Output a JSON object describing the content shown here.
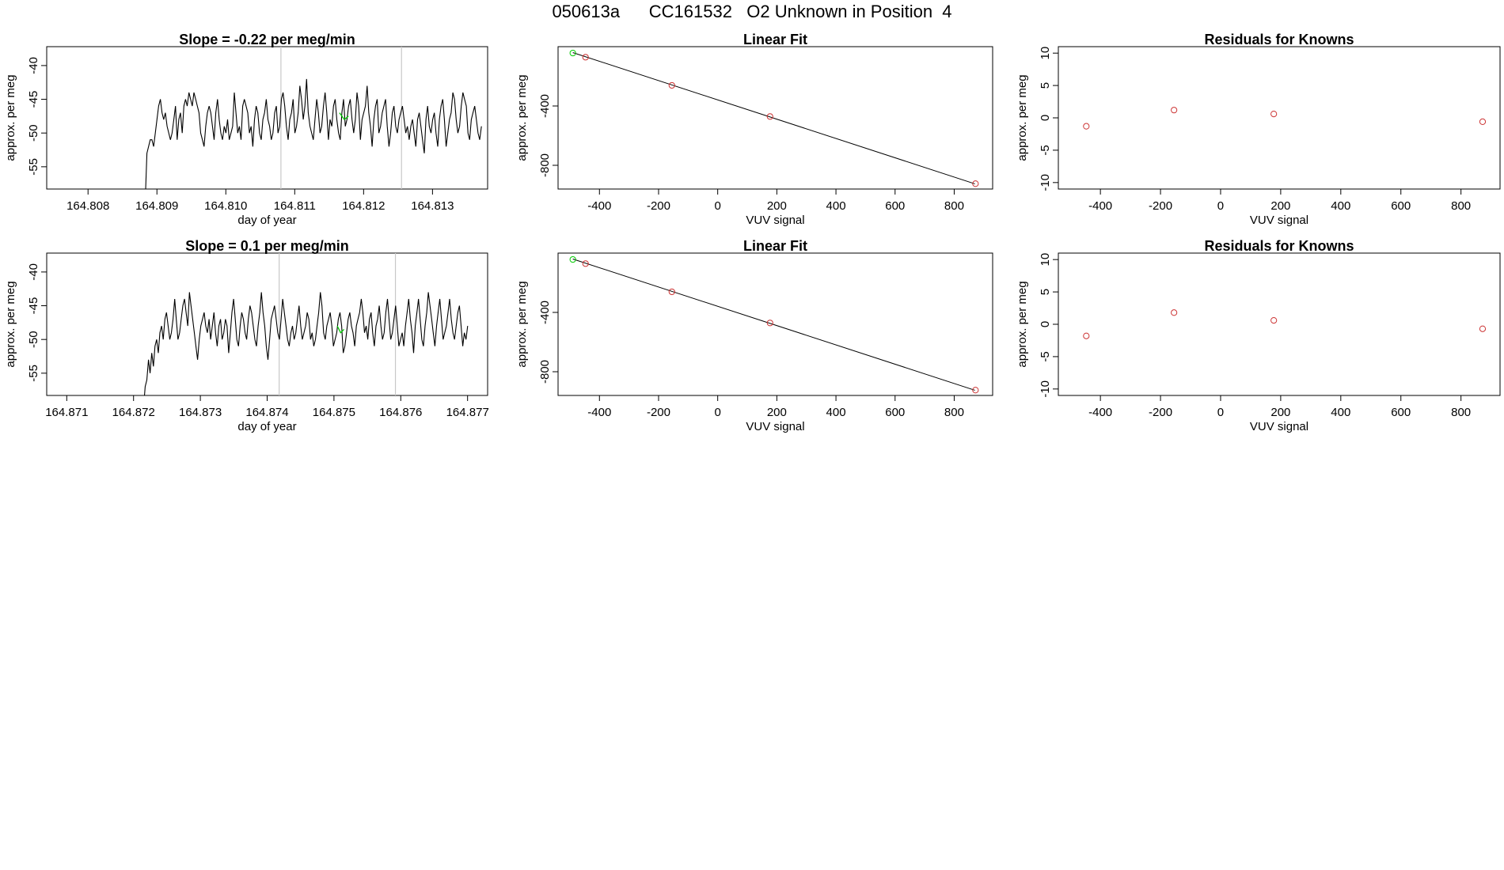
{
  "figure": {
    "title": "050613a      CC161532   O2 Unknown in Position  4"
  },
  "chart_data": [
    {
      "type": "line",
      "title": "Slope =  -0.22  per meg/min",
      "xlabel": "day of year",
      "ylabel": "approx. per meg",
      "xlim": [
        164.8074,
        164.8138
      ],
      "ylim": [
        -58.3,
        -37.2
      ],
      "xticks": [
        164.808,
        164.809,
        164.81,
        164.811,
        164.812,
        164.813
      ],
      "xtick_labels": [
        "164.808",
        "164.809",
        "164.810",
        "164.811",
        "164.812",
        "164.813"
      ],
      "yticks": [
        -55,
        -50,
        -45,
        -40
      ],
      "ytick_labels": [
        "-55",
        "-50",
        "-45",
        "-40"
      ],
      "vlines": [
        164.8108,
        164.81255
      ],
      "series": [
        {
          "color": "#000000",
          "x0": 164.80883,
          "dx": 2.44e-05,
          "values": [
            -60,
            -53,
            -52,
            -51,
            -51,
            -52,
            -50,
            -48,
            -46,
            -45,
            -47,
            -48,
            -47,
            -49,
            -50,
            -51,
            -50,
            -48,
            -46,
            -51,
            -48,
            -47,
            -50,
            -46,
            -45,
            -46,
            -44,
            -45,
            -46,
            -44,
            -45,
            -46,
            -47,
            -50,
            -51,
            -52,
            -49,
            -47,
            -46,
            -47,
            -49,
            -51,
            -47,
            -45,
            -48,
            -50,
            -51,
            -49,
            -50,
            -48,
            -51,
            -50,
            -49,
            -44,
            -47,
            -50,
            -49,
            -51,
            -46,
            -45,
            -46,
            -47,
            -50,
            -49,
            -52,
            -48,
            -46,
            -47,
            -50,
            -51,
            -48,
            -47,
            -45,
            -48,
            -49,
            -51,
            -50,
            -47,
            -46,
            -50,
            -49,
            -45,
            -44,
            -46,
            -49,
            -51,
            -48,
            -47,
            -45,
            -50,
            -49,
            -47,
            -43,
            -45,
            -48,
            -46,
            -42,
            -47,
            -49,
            -50,
            -51,
            -48,
            -45,
            -47,
            -50,
            -49,
            -46,
            -44,
            -47,
            -51,
            -48,
            -49,
            -46,
            -45,
            -48,
            -50,
            -51,
            -47,
            -45,
            -49,
            -48,
            -46,
            -45,
            -48,
            -50,
            -48,
            -44,
            -46,
            -51,
            -48,
            -47,
            -46,
            -43,
            -47,
            -49,
            -52,
            -48,
            -46,
            -45,
            -50,
            -49,
            -47,
            -46,
            -45,
            -49,
            -52,
            -50,
            -47,
            -46,
            -49,
            -50,
            -48,
            -47,
            -46,
            -48,
            -50,
            -49,
            -51,
            -49,
            -48,
            -50,
            -52,
            -48,
            -47,
            -49,
            -51,
            -53,
            -48,
            -46,
            -49,
            -50,
            -48,
            -47,
            -50,
            -52,
            -48,
            -46,
            -45,
            -48,
            -52,
            -50,
            -48,
            -47,
            -44,
            -45,
            -48,
            -50,
            -49,
            -46,
            -44,
            -45,
            -46,
            -50,
            -51,
            -48,
            -47,
            -46,
            -48,
            -50,
            -51,
            -49
          ]
        }
      ],
      "highlight": {
        "color": "#00cc00",
        "x": [
          164.81165,
          164.81172,
          164.81178
        ],
        "values": [
          -47,
          -48,
          -47.5
        ]
      }
    },
    {
      "type": "scatter",
      "title": "Linear Fit",
      "xlabel": "VUV signal",
      "ylabel": "approx. per meg",
      "xlim": [
        -540,
        930
      ],
      "ylim": [
        -960,
        0
      ],
      "xticks": [
        -400,
        -200,
        0,
        200,
        400,
        600,
        800
      ],
      "xtick_labels": [
        "-400",
        "-200",
        "0",
        "200",
        "400",
        "600",
        "800"
      ],
      "yticks": [
        -800,
        -400
      ],
      "ytick_labels": [
        "-800",
        "-400"
      ],
      "fit_line": {
        "x": [
          -490,
          870
        ],
        "y": [
          -40,
          -925
        ]
      },
      "series": [
        {
          "name": "Knowns",
          "color": "#cc3333",
          "x": [
            -447,
            -155,
            177,
            872
          ],
          "y": [
            -71,
            -261,
            -471,
            -924
          ]
        },
        {
          "name": "Unknown",
          "color": "#00cc00",
          "x": [
            -490
          ],
          "y": [
            -43
          ]
        }
      ]
    },
    {
      "type": "scatter",
      "title": "Residuals for Knowns",
      "xlabel": "VUV signal",
      "ylabel": "approx. per meg",
      "xlim": [
        -540,
        930
      ],
      "ylim": [
        -11,
        11
      ],
      "xticks": [
        -400,
        -200,
        0,
        200,
        400,
        600,
        800
      ],
      "xtick_labels": [
        "-400",
        "-200",
        "0",
        "200",
        "400",
        "600",
        "800"
      ],
      "yticks": [
        -10,
        -5,
        0,
        5,
        10
      ],
      "ytick_labels": [
        "-10",
        "-5",
        "0",
        "5",
        "10"
      ],
      "series": [
        {
          "color": "#cc3333",
          "x": [
            -447,
            -155,
            177,
            872
          ],
          "y": [
            -1.3,
            1.2,
            0.6,
            -0.6
          ]
        }
      ]
    },
    {
      "type": "line",
      "title": "Slope =  0.1  per meg/min",
      "xlabel": "day of year",
      "ylabel": "approx. per meg",
      "xlim": [
        164.8707,
        164.8773
      ],
      "ylim": [
        -58.3,
        -37.2
      ],
      "xticks": [
        164.871,
        164.872,
        164.873,
        164.874,
        164.875,
        164.876,
        164.877
      ],
      "xtick_labels": [
        "164.871",
        "164.872",
        "164.873",
        "164.874",
        "164.875",
        "164.876",
        "164.877"
      ],
      "yticks": [
        -55,
        -50,
        -45,
        -40
      ],
      "ytick_labels": [
        "-55",
        "-50",
        "-45",
        "-40"
      ],
      "vlines": [
        164.87418,
        164.87592
      ],
      "series": [
        {
          "color": "#000000",
          "x0": 164.87215,
          "dx": 2.45e-05,
          "values": [
            -60,
            -57,
            -56,
            -53,
            -55,
            -52,
            -54,
            -51,
            -50,
            -52,
            -49,
            -48,
            -50,
            -47,
            -46,
            -48,
            -50,
            -49,
            -47,
            -44,
            -47,
            -50,
            -49,
            -47,
            -45,
            -44,
            -46,
            -48,
            -43,
            -45,
            -47,
            -49,
            -51,
            -53,
            -50,
            -48,
            -47,
            -46,
            -48,
            -49,
            -47,
            -50,
            -48,
            -46,
            -49,
            -51,
            -48,
            -47,
            -50,
            -49,
            -47,
            -48,
            -52,
            -49,
            -46,
            -44,
            -47,
            -50,
            -51,
            -48,
            -46,
            -47,
            -49,
            -50,
            -47,
            -45,
            -46,
            -48,
            -50,
            -51,
            -48,
            -46,
            -43,
            -46,
            -48,
            -51,
            -53,
            -50,
            -47,
            -46,
            -45,
            -47,
            -49,
            -50,
            -47,
            -44,
            -46,
            -48,
            -50,
            -51,
            -49,
            -48,
            -50,
            -49,
            -47,
            -45,
            -48,
            -50,
            -49,
            -48,
            -46,
            -47,
            -50,
            -49,
            -51,
            -50,
            -48,
            -46,
            -43,
            -45,
            -49,
            -50,
            -48,
            -47,
            -46,
            -48,
            -51,
            -50,
            -49,
            -47,
            -46,
            -48,
            -52,
            -51,
            -49,
            -47,
            -46,
            -48,
            -49,
            -51,
            -48,
            -47,
            -46,
            -44,
            -46,
            -49,
            -48,
            -50,
            -47,
            -46,
            -49,
            -51,
            -48,
            -47,
            -45,
            -48,
            -50,
            -49,
            -46,
            -44,
            -47,
            -50,
            -49,
            -47,
            -45,
            -48,
            -51,
            -50,
            -49,
            -51,
            -48,
            -46,
            -44,
            -47,
            -49,
            -52,
            -48,
            -46,
            -44,
            -47,
            -50,
            -51,
            -48,
            -46,
            -43,
            -45,
            -47,
            -49,
            -51,
            -48,
            -46,
            -44,
            -47,
            -50,
            -49,
            -48,
            -46,
            -44,
            -47,
            -49,
            -50,
            -48,
            -46,
            -45,
            -48,
            -51,
            -49,
            -50,
            -48
          ]
        }
      ],
      "highlight": {
        "color": "#00cc00",
        "x": [
          164.87505,
          164.8751,
          164.87515
        ],
        "values": [
          -48,
          -49,
          -48.5
        ]
      }
    },
    {
      "type": "scatter",
      "title": "Linear Fit",
      "xlabel": "VUV signal",
      "ylabel": "approx. per meg",
      "xlim": [
        -540,
        930
      ],
      "ylim": [
        -960,
        0
      ],
      "xticks": [
        -400,
        -200,
        0,
        200,
        400,
        600,
        800
      ],
      "xtick_labels": [
        "-400",
        "-200",
        "0",
        "200",
        "400",
        "600",
        "800"
      ],
      "yticks": [
        -800,
        -400
      ],
      "ytick_labels": [
        "-800",
        "-400"
      ],
      "fit_line": {
        "x": [
          -490,
          870
        ],
        "y": [
          -40,
          -925
        ]
      },
      "series": [
        {
          "name": "Knowns",
          "color": "#cc3333",
          "x": [
            -447,
            -155,
            177,
            872
          ],
          "y": [
            -71,
            -261,
            -471,
            -924
          ]
        },
        {
          "name": "Unknown",
          "color": "#00cc00",
          "x": [
            -490
          ],
          "y": [
            -43
          ]
        }
      ]
    },
    {
      "type": "scatter",
      "title": "Residuals for Knowns",
      "xlabel": "VUV signal",
      "ylabel": "approx. per meg",
      "xlim": [
        -540,
        930
      ],
      "ylim": [
        -11,
        11
      ],
      "xticks": [
        -400,
        -200,
        0,
        200,
        400,
        600,
        800
      ],
      "xtick_labels": [
        "-400",
        "-200",
        "0",
        "200",
        "400",
        "600",
        "800"
      ],
      "yticks": [
        -10,
        -5,
        0,
        5,
        10
      ],
      "ytick_labels": [
        "-10",
        "-5",
        "0",
        "5",
        "10"
      ],
      "series": [
        {
          "color": "#cc3333",
          "x": [
            -447,
            -155,
            177,
            872
          ],
          "y": [
            -1.8,
            1.8,
            0.6,
            -0.7
          ]
        }
      ]
    }
  ]
}
